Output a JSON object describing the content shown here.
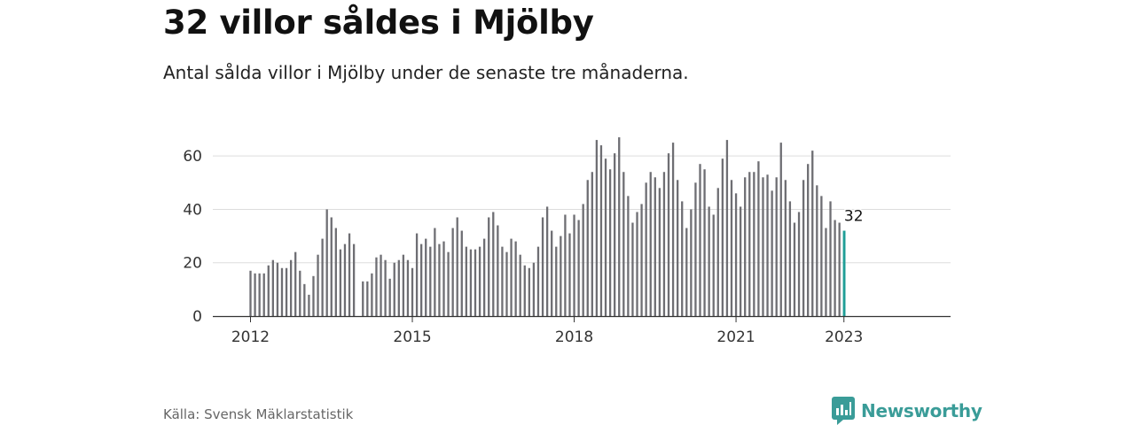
{
  "title": "32 villor såldes i Mjölby",
  "subtitle": "Antal sålda villor i Mjölby under de senaste tre månaderna.",
  "source": "Källa: Svensk Mäklarstatistik",
  "brand": {
    "name": "Newsworthy",
    "icon": "bar-chart-speech-bubble-icon",
    "color": "#3a9c98"
  },
  "colors": {
    "bar": "#6e6e73",
    "highlight": "#1f9e97",
    "grid": "#dddddd",
    "axis": "#333333"
  },
  "chart_data": {
    "type": "bar",
    "title": "32 villor såldes i Mjölby",
    "xlabel": "",
    "ylabel": "",
    "ylim": [
      0,
      72
    ],
    "yticks": [
      0,
      20,
      40,
      60
    ],
    "xticks": [
      "2012",
      "2015",
      "2018",
      "2021",
      "2023"
    ],
    "grid": true,
    "series": [
      {
        "values": [
          17,
          16,
          16,
          16,
          19,
          21,
          20,
          18,
          18,
          21,
          24,
          17,
          12,
          8,
          15,
          23,
          29,
          40,
          37,
          33,
          25,
          27,
          31,
          27,
          null,
          13,
          13,
          16,
          22,
          23,
          21,
          14,
          20,
          21,
          23,
          21,
          18,
          31,
          27,
          29,
          26,
          33,
          27,
          28,
          24,
          33,
          37,
          32,
          26,
          25,
          25,
          26,
          29,
          37,
          39,
          34,
          26,
          24,
          29,
          28,
          23,
          19,
          18,
          20,
          26,
          37,
          41,
          32,
          26,
          30,
          38,
          31,
          38,
          36,
          42,
          51,
          54,
          66,
          64,
          59,
          55,
          61,
          67,
          54,
          45,
          35,
          39,
          42,
          50,
          54,
          52,
          48,
          54,
          61,
          65,
          51,
          43,
          33,
          40,
          50,
          57,
          55,
          41,
          38,
          48,
          59,
          66,
          51,
          46,
          41,
          52,
          54,
          54,
          58,
          52,
          53,
          47,
          52,
          65,
          51,
          43,
          35,
          39,
          51,
          57,
          62,
          49,
          45,
          33,
          43,
          36,
          35,
          32
        ]
      }
    ],
    "latest": {
      "label": "2023",
      "value": 32,
      "value_label": "32"
    }
  }
}
